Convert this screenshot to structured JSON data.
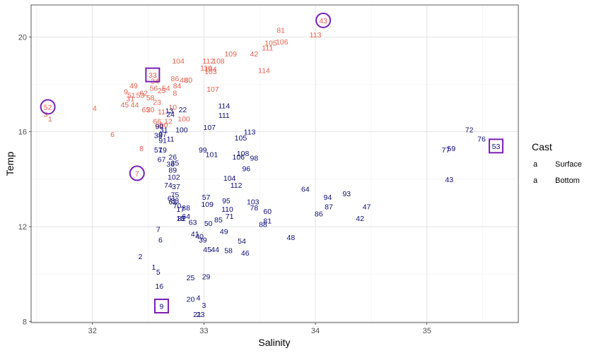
{
  "chart_data": {
    "type": "scatter",
    "xlabel": "Salinity",
    "ylabel": "Temp",
    "xlim": [
      31.45,
      35.82
    ],
    "ylim": [
      7.95,
      21.35
    ],
    "x_ticks": [
      32,
      33,
      34,
      35
    ],
    "y_ticks": [
      8,
      12,
      16,
      20
    ],
    "x_tick_labels": [
      "32",
      "33",
      "34",
      "35"
    ],
    "y_tick_labels": [
      "8",
      "12",
      "16",
      "20"
    ],
    "grid": true,
    "legend": {
      "title": "Cast",
      "position": "right",
      "entries": [
        {
          "key_text": "a",
          "label": "Surface",
          "color": "#e8604c"
        },
        {
          "key_text": "a",
          "label": "Bottom",
          "color": "#0b0b7a"
        }
      ]
    },
    "series": [
      {
        "name": "Surface",
        "color": "#e8604c",
        "points": [
          {
            "label": "1",
            "x": 31.62,
            "y": 16.55
          },
          {
            "label": "3",
            "x": 31.58,
            "y": 16.75
          },
          {
            "label": "52",
            "x": 31.6,
            "y": 17.05
          },
          {
            "label": "4",
            "x": 32.02,
            "y": 17.0
          },
          {
            "label": "6",
            "x": 32.18,
            "y": 15.9
          },
          {
            "label": "7",
            "x": 32.4,
            "y": 14.25
          },
          {
            "label": "8",
            "x": 32.44,
            "y": 15.3
          },
          {
            "label": "45",
            "x": 32.29,
            "y": 17.15
          },
          {
            "label": "31",
            "x": 32.34,
            "y": 17.4
          },
          {
            "label": "49",
            "x": 32.37,
            "y": 17.95
          },
          {
            "label": "9",
            "x": 32.3,
            "y": 17.7
          },
          {
            "label": "51",
            "x": 32.35,
            "y": 17.55
          },
          {
            "label": "44",
            "x": 32.38,
            "y": 17.15
          },
          {
            "label": "53",
            "x": 32.43,
            "y": 17.55
          },
          {
            "label": "65",
            "x": 32.48,
            "y": 16.95
          },
          {
            "label": "33",
            "x": 32.54,
            "y": 18.4
          },
          {
            "label": "34",
            "x": 32.56,
            "y": 18.15
          },
          {
            "label": "56",
            "x": 32.55,
            "y": 17.85
          },
          {
            "label": "25",
            "x": 32.62,
            "y": 17.75
          },
          {
            "label": "54",
            "x": 32.66,
            "y": 17.85
          },
          {
            "label": "58",
            "x": 32.52,
            "y": 17.45
          },
          {
            "label": "62",
            "x": 32.46,
            "y": 17.65
          },
          {
            "label": "23",
            "x": 32.58,
            "y": 17.25
          },
          {
            "label": "10",
            "x": 32.72,
            "y": 17.05
          },
          {
            "label": "11",
            "x": 32.62,
            "y": 16.85
          },
          {
            "label": "20",
            "x": 32.52,
            "y": 16.95
          },
          {
            "label": "66",
            "x": 32.58,
            "y": 16.45
          },
          {
            "label": "69",
            "x": 32.6,
            "y": 16.25
          },
          {
            "label": "12",
            "x": 32.68,
            "y": 16.45
          },
          {
            "label": "90",
            "x": 32.64,
            "y": 16.3
          },
          {
            "label": "86",
            "x": 32.74,
            "y": 18.25
          },
          {
            "label": "48",
            "x": 32.82,
            "y": 18.2
          },
          {
            "label": "80",
            "x": 32.86,
            "y": 18.2
          },
          {
            "label": "84",
            "x": 32.76,
            "y": 17.95
          },
          {
            "label": "8",
            "x": 32.74,
            "y": 17.65
          },
          {
            "label": "100",
            "x": 32.82,
            "y": 16.55
          },
          {
            "label": "104",
            "x": 32.77,
            "y": 19.0
          },
          {
            "label": "112",
            "x": 33.04,
            "y": 19.0
          },
          {
            "label": "108",
            "x": 33.13,
            "y": 19.0
          },
          {
            "label": "109",
            "x": 33.24,
            "y": 19.3
          },
          {
            "label": "110",
            "x": 33.02,
            "y": 18.7
          },
          {
            "label": "104",
            "x": 33.06,
            "y": 18.65
          },
          {
            "label": "103",
            "x": 33.06,
            "y": 18.55
          },
          {
            "label": "107",
            "x": 33.08,
            "y": 17.8
          },
          {
            "label": "42",
            "x": 33.45,
            "y": 19.3
          },
          {
            "label": "111",
            "x": 33.57,
            "y": 19.55
          },
          {
            "label": "105",
            "x": 33.6,
            "y": 19.75
          },
          {
            "label": "106",
            "x": 33.7,
            "y": 19.8
          },
          {
            "label": "81",
            "x": 33.69,
            "y": 20.3
          },
          {
            "label": "113",
            "x": 34.0,
            "y": 20.1
          },
          {
            "label": "43",
            "x": 34.07,
            "y": 20.7
          },
          {
            "label": "114",
            "x": 33.54,
            "y": 18.6
          }
        ]
      },
      {
        "name": "Bottom",
        "color": "#0b0b7a",
        "points": [
          {
            "label": "1",
            "x": 32.55,
            "y": 10.3
          },
          {
            "label": "2",
            "x": 32.43,
            "y": 10.75
          },
          {
            "label": "3",
            "x": 33.0,
            "y": 8.7
          },
          {
            "label": "5",
            "x": 32.59,
            "y": 10.1
          },
          {
            "label": "6",
            "x": 32.61,
            "y": 11.45
          },
          {
            "label": "7",
            "x": 32.59,
            "y": 11.9
          },
          {
            "label": "9",
            "x": 32.62,
            "y": 8.65
          },
          {
            "label": "16",
            "x": 32.6,
            "y": 9.5
          },
          {
            "label": "20",
            "x": 32.88,
            "y": 8.95
          },
          {
            "label": "4",
            "x": 32.95,
            "y": 9.0
          },
          {
            "label": "21",
            "x": 32.94,
            "y": 8.3
          },
          {
            "label": "23",
            "x": 32.97,
            "y": 8.3
          },
          {
            "label": "25",
            "x": 32.88,
            "y": 9.85
          },
          {
            "label": "29",
            "x": 33.02,
            "y": 9.9
          },
          {
            "label": "40",
            "x": 32.96,
            "y": 11.6
          },
          {
            "label": "41",
            "x": 32.92,
            "y": 11.7
          },
          {
            "label": "39",
            "x": 32.99,
            "y": 11.45
          },
          {
            "label": "45",
            "x": 33.03,
            "y": 11.05
          },
          {
            "label": "44",
            "x": 33.1,
            "y": 11.05
          },
          {
            "label": "58",
            "x": 33.22,
            "y": 11.0
          },
          {
            "label": "46",
            "x": 33.37,
            "y": 10.9
          },
          {
            "label": "54",
            "x": 33.34,
            "y": 11.4
          },
          {
            "label": "49",
            "x": 33.18,
            "y": 11.8
          },
          {
            "label": "50",
            "x": 33.04,
            "y": 12.15
          },
          {
            "label": "85",
            "x": 33.13,
            "y": 12.3
          },
          {
            "label": "71",
            "x": 33.23,
            "y": 12.45
          },
          {
            "label": "63",
            "x": 32.9,
            "y": 12.2
          },
          {
            "label": "64",
            "x": 32.84,
            "y": 12.45
          },
          {
            "label": "18",
            "x": 32.79,
            "y": 12.35
          },
          {
            "label": "82",
            "x": 32.8,
            "y": 12.35
          },
          {
            "label": "70",
            "x": 32.76,
            "y": 12.9
          },
          {
            "label": "17",
            "x": 32.79,
            "y": 12.75
          },
          {
            "label": "88",
            "x": 32.84,
            "y": 12.8
          },
          {
            "label": "57",
            "x": 33.02,
            "y": 13.25
          },
          {
            "label": "109",
            "x": 33.03,
            "y": 12.95
          },
          {
            "label": "95",
            "x": 33.2,
            "y": 13.1
          },
          {
            "label": "110",
            "x": 33.21,
            "y": 12.75
          },
          {
            "label": "103",
            "x": 33.44,
            "y": 13.05
          },
          {
            "label": "78",
            "x": 33.45,
            "y": 12.8
          },
          {
            "label": "60",
            "x": 33.57,
            "y": 12.65
          },
          {
            "label": "81",
            "x": 33.57,
            "y": 12.25
          },
          {
            "label": "88",
            "x": 33.53,
            "y": 12.1
          },
          {
            "label": "48",
            "x": 33.78,
            "y": 11.55
          },
          {
            "label": "86",
            "x": 34.03,
            "y": 12.55
          },
          {
            "label": "87",
            "x": 34.12,
            "y": 12.85
          },
          {
            "label": "94",
            "x": 34.11,
            "y": 13.25
          },
          {
            "label": "93",
            "x": 34.28,
            "y": 13.4
          },
          {
            "label": "64",
            "x": 33.91,
            "y": 13.6
          },
          {
            "label": "47",
            "x": 34.46,
            "y": 12.85
          },
          {
            "label": "42",
            "x": 34.4,
            "y": 12.35
          },
          {
            "label": "43",
            "x": 35.2,
            "y": 14.0
          },
          {
            "label": "72",
            "x": 35.38,
            "y": 16.1
          },
          {
            "label": "76",
            "x": 35.49,
            "y": 15.7
          },
          {
            "label": "77",
            "x": 35.17,
            "y": 15.25
          },
          {
            "label": "59",
            "x": 35.22,
            "y": 15.3
          },
          {
            "label": "53",
            "x": 35.62,
            "y": 15.4
          },
          {
            "label": "114",
            "x": 33.18,
            "y": 17.1
          },
          {
            "label": "111",
            "x": 33.18,
            "y": 16.7
          },
          {
            "label": "107",
            "x": 33.05,
            "y": 16.2
          },
          {
            "label": "113",
            "x": 33.41,
            "y": 16.0
          },
          {
            "label": "105",
            "x": 33.33,
            "y": 15.75
          },
          {
            "label": "108",
            "x": 33.35,
            "y": 15.1
          },
          {
            "label": "106",
            "x": 33.31,
            "y": 14.95
          },
          {
            "label": "98",
            "x": 33.45,
            "y": 14.9
          },
          {
            "label": "96",
            "x": 33.38,
            "y": 14.45
          },
          {
            "label": "99",
            "x": 32.99,
            "y": 15.25
          },
          {
            "label": "101",
            "x": 33.07,
            "y": 15.05
          },
          {
            "label": "104",
            "x": 33.23,
            "y": 14.05
          },
          {
            "label": "112",
            "x": 33.29,
            "y": 13.75
          },
          {
            "label": "102",
            "x": 32.73,
            "y": 14.1
          },
          {
            "label": "74",
            "x": 32.68,
            "y": 13.75
          },
          {
            "label": "37",
            "x": 32.75,
            "y": 13.7
          },
          {
            "label": "75",
            "x": 32.74,
            "y": 13.35
          },
          {
            "label": "61",
            "x": 32.71,
            "y": 13.2
          },
          {
            "label": "62",
            "x": 32.72,
            "y": 13.05
          },
          {
            "label": "83",
            "x": 32.74,
            "y": 13.1
          },
          {
            "label": "26",
            "x": 32.72,
            "y": 14.95
          },
          {
            "label": "36",
            "x": 32.7,
            "y": 14.65
          },
          {
            "label": "35",
            "x": 32.74,
            "y": 14.7
          },
          {
            "label": "89",
            "x": 32.72,
            "y": 14.4
          },
          {
            "label": "67",
            "x": 32.62,
            "y": 14.85
          },
          {
            "label": "57",
            "x": 32.59,
            "y": 15.25
          },
          {
            "label": "19",
            "x": 32.63,
            "y": 15.25
          },
          {
            "label": "31",
            "x": 32.64,
            "y": 16.1
          },
          {
            "label": "100",
            "x": 32.8,
            "y": 16.1
          },
          {
            "label": "90",
            "x": 32.6,
            "y": 16.25
          },
          {
            "label": "38",
            "x": 32.59,
            "y": 15.85
          },
          {
            "label": "97",
            "x": 32.63,
            "y": 15.9
          },
          {
            "label": "91",
            "x": 32.63,
            "y": 15.65
          },
          {
            "label": "11",
            "x": 32.7,
            "y": 15.7
          },
          {
            "label": "22",
            "x": 32.81,
            "y": 16.95
          },
          {
            "label": "24",
            "x": 32.7,
            "y": 16.75
          },
          {
            "label": "13",
            "x": 32.69,
            "y": 16.9
          }
        ]
      }
    ],
    "highlights": [
      {
        "shape": "circle",
        "series": "Surface",
        "label": "52"
      },
      {
        "shape": "circle",
        "series": "Surface",
        "label": "7"
      },
      {
        "shape": "circle",
        "series": "Surface",
        "label": "43"
      },
      {
        "shape": "square",
        "series": "Surface",
        "label": "33"
      },
      {
        "shape": "square",
        "series": "Bottom",
        "label": "9"
      },
      {
        "shape": "square",
        "series": "Bottom",
        "label": "53"
      }
    ],
    "highlight_color": "#7a1fb8"
  }
}
